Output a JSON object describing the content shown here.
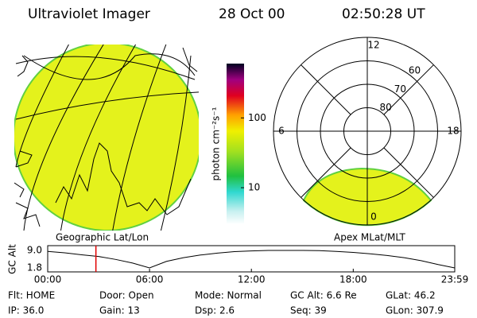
{
  "header": {
    "title": "Ultraviolet Imager",
    "date": "28 Oct 00",
    "time": "02:50:28 UT"
  },
  "colorbar": {
    "label": "photon cm⁻²s⁻¹",
    "log": true,
    "lim": [
      3,
      600
    ],
    "ticks": [
      10,
      100
    ]
  },
  "left_map": {
    "caption": "Geographic Lat/Lon"
  },
  "polar": {
    "caption": "Apex MLat/MLT",
    "rlim": [
      90,
      50
    ],
    "rticks": [
      60,
      70,
      80
    ],
    "mlt_labels": [
      {
        "value": 12,
        "label": "12"
      },
      {
        "value": 18,
        "label": "18"
      },
      {
        "value": 6,
        "label": "6"
      },
      {
        "value": 0,
        "label": "0"
      }
    ]
  },
  "chart_data": {
    "type": "line",
    "ylabel": "GC Alt",
    "x": [
      0,
      1,
      2,
      3,
      4,
      5,
      6,
      7,
      8,
      9,
      10,
      11,
      12,
      13,
      14,
      15,
      16,
      17,
      18,
      19,
      20,
      21,
      22,
      23,
      23.98
    ],
    "series": [
      {
        "color": "#000000",
        "values": [
          8.6,
          8.0,
          7.2,
          6.5,
          5.3,
          3.8,
          1.8,
          4.5,
          6.0,
          7.1,
          7.9,
          8.5,
          8.8,
          9.0,
          9.0,
          9.0,
          8.9,
          8.6,
          8.2,
          7.6,
          6.9,
          6.0,
          4.8,
          3.2,
          1.8
        ]
      }
    ],
    "marker": {
      "x": 2.84,
      "color": "#e00000"
    },
    "xlim": [
      0,
      23.98
    ],
    "ylim": [
      1.8,
      9.0
    ],
    "xticks": [
      {
        "value": 0,
        "label": "00:00"
      },
      {
        "value": 6,
        "label": "06:00"
      },
      {
        "value": 12,
        "label": "12:00"
      },
      {
        "value": 18,
        "label": "18:00"
      },
      {
        "value": 23.98,
        "label": "23:59"
      }
    ],
    "yticks": [
      {
        "value": 9.0,
        "label": "9.0"
      },
      {
        "value": 1.8,
        "label": "1.8"
      }
    ]
  },
  "footer": {
    "rows": [
      [
        "Flt: HOME",
        "Door: Open",
        "Mode: Normal",
        "GC Alt: 6.6 Re",
        "GLat: 46.2"
      ],
      [
        "IP: 36.0",
        "Gain: 13",
        "Dsp: 2.6",
        "Seq: 39",
        "GLon: 307.9"
      ]
    ]
  }
}
